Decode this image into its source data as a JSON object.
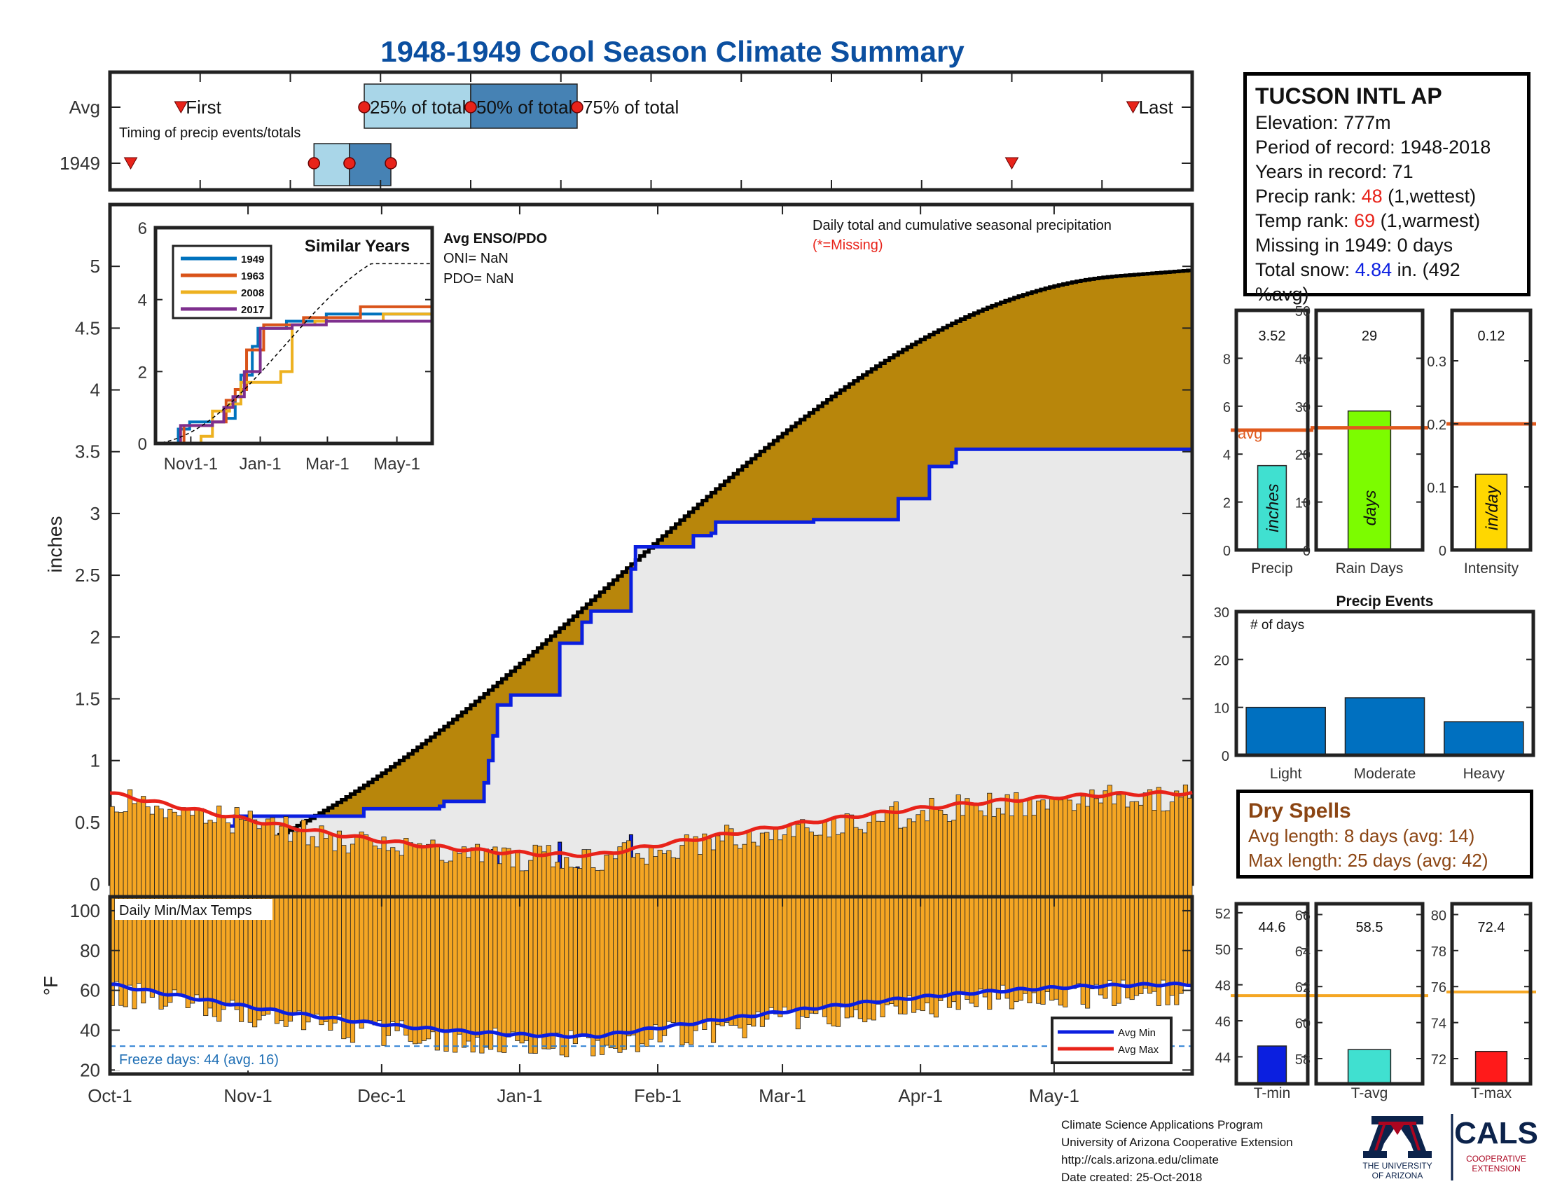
{
  "title": "1948-1949 Cool Season Climate Summary",
  "timing": {
    "row_labels": [
      "Avg",
      "1949"
    ],
    "annotation": "Timing of precip events/totals",
    "labels": {
      "first": "First",
      "p25": "25% of total",
      "p50": "50% of total",
      "p75": "75% of total",
      "last": "Last"
    },
    "avg": {
      "first": 48,
      "p25": 172,
      "p50": 244,
      "p75": 316,
      "last": 692
    },
    "y1949": {
      "first": 14,
      "p25": 138,
      "p50": 162,
      "p75": 190,
      "last": 610
    }
  },
  "station": {
    "name": "TUCSON INTL AP",
    "elevation_label": "Elevation: ",
    "elevation": "777m",
    "period_label": "Period of record: ",
    "period": "1948-2018",
    "years_label": "Years in record: ",
    "years": "71",
    "precip_rank_label": "Precip rank: ",
    "precip_rank": "48",
    "precip_rank_note": " (1,wettest)",
    "temp_rank_label": "Temp rank: ",
    "temp_rank": "69",
    "temp_rank_note": " (1,warmest)",
    "missing_label": "Missing in 1949: ",
    "missing": "0 days",
    "snow_label": "Total snow: ",
    "snow": "4.84",
    "snow_note": " in. (492",
    "snow_note2": "%avg)"
  },
  "main_chart": {
    "ylabel": "inches",
    "yticks": [
      0,
      0.5,
      1,
      1.5,
      2,
      2.5,
      3,
      3.5,
      4,
      4.5,
      5
    ],
    "ylim": [
      0,
      5.5
    ],
    "caption": "Daily total and cumulative seasonal precipitation",
    "missing_note": "(*=Missing)",
    "enso_title": "Avg ENSO/PDO",
    "oni": "ONI= NaN",
    "pdo": "PDO= NaN"
  },
  "inset": {
    "title": "Similar Years",
    "yticks": [
      0,
      2,
      4,
      6
    ],
    "xticks": [
      "Nov1-1",
      "Jan-1",
      "Mar-1",
      "May-1"
    ],
    "legend": [
      {
        "name": "1949",
        "color": "#0072bd"
      },
      {
        "name": "1963",
        "color": "#d95319"
      },
      {
        "name": "2008",
        "color": "#edb120"
      },
      {
        "name": "2017",
        "color": "#7e2f8e"
      }
    ]
  },
  "bar_panels": [
    {
      "label": "Precip",
      "value_text": "3.52",
      "value": 3.52,
      "avg": 5.0,
      "ymax": 10,
      "yticks": [
        0,
        2,
        4,
        6,
        8
      ],
      "color": "#40e0d0",
      "unit": "inches",
      "avg_label": "avg"
    },
    {
      "label": "Rain Days",
      "value_text": "29",
      "value": 29,
      "avg": 25.5,
      "ymax": 50,
      "yticks": [
        0,
        10,
        20,
        30,
        40,
        50
      ],
      "color": "#7cfc00",
      "unit": "days"
    },
    {
      "label": "Intensity",
      "value_text": "0.12",
      "value": 0.12,
      "avg": 0.2,
      "ymax": 0.38,
      "yticks": [
        0,
        0.1,
        0.2,
        0.3
      ],
      "color": "#ffd700",
      "unit": "in/day"
    }
  ],
  "precip_events": {
    "title": "Precip Events",
    "ylabel": "# of days",
    "yticks": [
      0,
      10,
      20,
      30
    ],
    "ylim": [
      0,
      30
    ],
    "categories": [
      "Light",
      "Moderate",
      "Heavy"
    ],
    "values": [
      10,
      12,
      7
    ],
    "color": "#0070c0"
  },
  "dry_spells": {
    "title": "Dry Spells",
    "avg_length": "Avg length: 8 days (avg: 14)",
    "max_length": "Max length: 25 days (avg: 42)"
  },
  "temp_chart": {
    "ylabel": "°F",
    "yticks": [
      20,
      40,
      60,
      80,
      100
    ],
    "ylim": [
      18,
      107
    ],
    "caption": "Daily Min/Max Temps",
    "freeze_note": "Freeze days: 44 (avg. 16)",
    "freeze_line": 32,
    "legend": [
      {
        "name": "Avg Min",
        "color": "#0b1fe0"
      },
      {
        "name": "Avg Max",
        "color": "#e8231a"
      }
    ]
  },
  "x_axis": {
    "labels": [
      "Oct-1",
      "Nov-1",
      "Dec-1",
      "Jan-1",
      "Feb-1",
      "Mar-1",
      "Apr-1",
      "May-1"
    ]
  },
  "temp_panels": [
    {
      "label": "T-min",
      "value_text": "44.6",
      "value": 44.6,
      "avg": 47.4,
      "ylim": [
        42.5,
        52.5
      ],
      "yticks": [
        44,
        46,
        48,
        50,
        52
      ],
      "color": "#0b1fe0"
    },
    {
      "label": "T-avg",
      "value_text": "58.5",
      "value": 58.5,
      "avg": 61.5,
      "ylim": [
        56.6,
        66.6
      ],
      "yticks": [
        58,
        60,
        62,
        64,
        66
      ],
      "color": "#40e0d0"
    },
    {
      "label": "T-max",
      "value_text": "72.4",
      "value": 72.4,
      "avg": 75.7,
      "ylim": [
        70.6,
        80.6
      ],
      "yticks": [
        72,
        74,
        76,
        78,
        80
      ],
      "color": "#ff1a1a"
    }
  ],
  "credits": [
    "Climate Science Applications Program",
    "University of Arizona Cooperative Extension",
    "http://cals.arizona.edu/climate",
    " Date created: 25-Oct-2018"
  ],
  "logos": {
    "ua_line1": "THE UNIVERSITY",
    "ua_line2": "OF ARIZONA",
    "cals": "CALS",
    "cals_line1": "COOPERATIVE",
    "cals_line2": "EXTENSION"
  }
}
